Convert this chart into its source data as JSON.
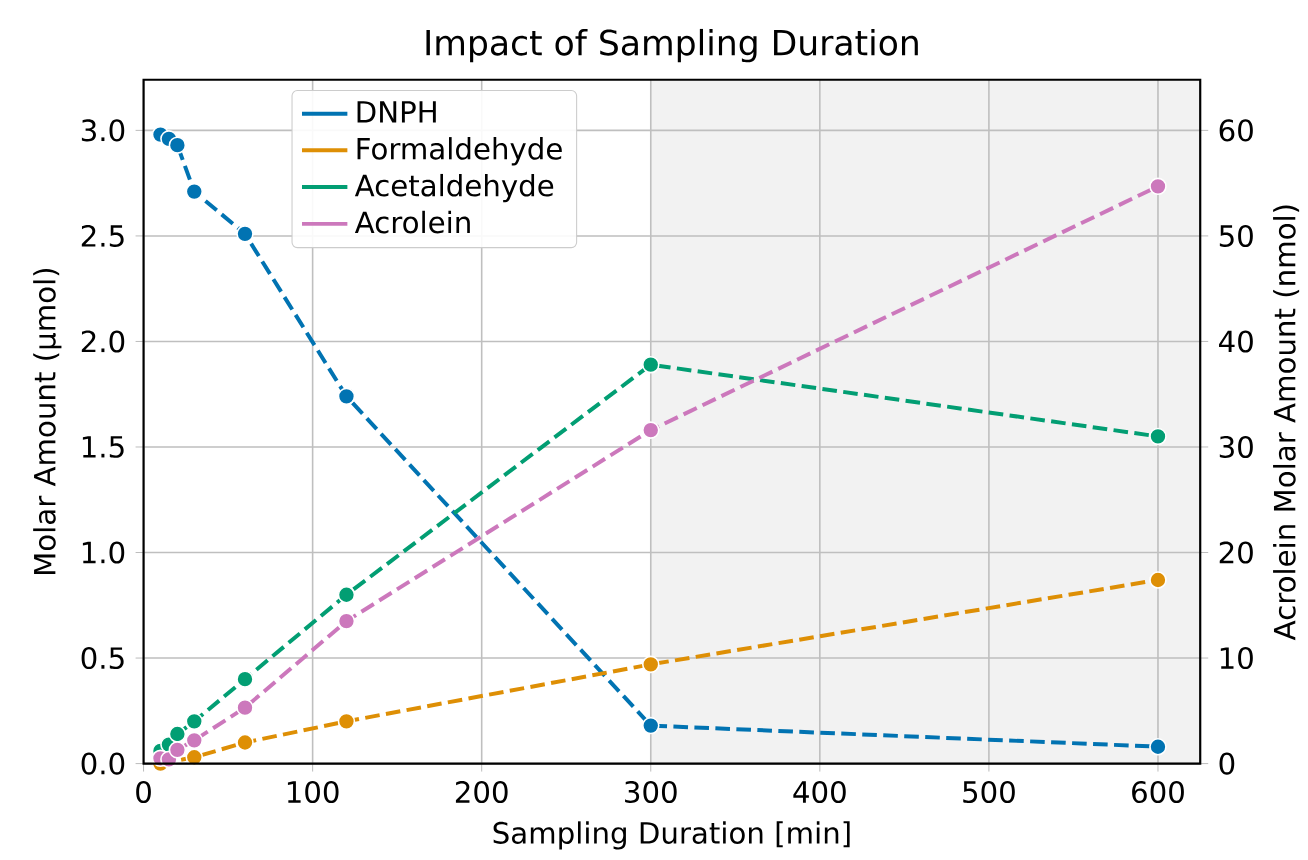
{
  "chart_data": {
    "type": "line",
    "title": "Impact of Sampling Duration",
    "xlabel": "Sampling Duration [min]",
    "ylabel": "Molar Amount (µmol)",
    "y2label": "Acrolein Molar Amount (nmol)",
    "x": [
      10,
      15,
      20,
      30,
      60,
      120,
      300,
      600
    ],
    "series": [
      {
        "name": "DNPH",
        "color": "#0173b2",
        "values": [
          2.98,
          2.96,
          2.93,
          2.71,
          2.51,
          1.74,
          0.18,
          0.08
        ]
      },
      {
        "name": "Formaldehyde",
        "color": "#de8f05",
        "values": [
          0.0,
          null,
          null,
          0.03,
          0.1,
          0.2,
          0.47,
          0.87
        ]
      },
      {
        "name": "Acetaldehyde",
        "color": "#029e73",
        "values": [
          0.06,
          0.09,
          0.14,
          0.2,
          0.4,
          0.8,
          1.89,
          1.55
        ]
      },
      {
        "name": "Acrolein",
        "color": "#cc78bc",
        "axis": "y2",
        "values": [
          0.5,
          0.4,
          1.3,
          2.2,
          5.3,
          13.5,
          31.6,
          54.7
        ]
      }
    ],
    "xlim": [
      0,
      625
    ],
    "ylim": [
      0,
      3.24
    ],
    "y2lim": [
      0,
      64.8
    ],
    "xticks": [
      0,
      100,
      200,
      300,
      400,
      500,
      600
    ],
    "yticks": [
      {
        "value": 0,
        "label": "0.0"
      },
      {
        "value": 0.5,
        "label": "0.5"
      },
      {
        "value": 1,
        "label": "1.0"
      },
      {
        "value": 1.5,
        "label": "1.5"
      },
      {
        "value": 2,
        "label": "2.0"
      },
      {
        "value": 2.5,
        "label": "2.5"
      },
      {
        "value": 3,
        "label": "3.0"
      }
    ],
    "y2ticks": [
      0,
      10,
      20,
      30,
      40,
      50,
      60
    ],
    "bands": [
      {
        "axis": "x",
        "from": 300,
        "to": 625,
        "color": "#f2f2f2"
      }
    ],
    "grid": true,
    "legend": "top left",
    "marker": "circle",
    "line_style": "dashed"
  }
}
